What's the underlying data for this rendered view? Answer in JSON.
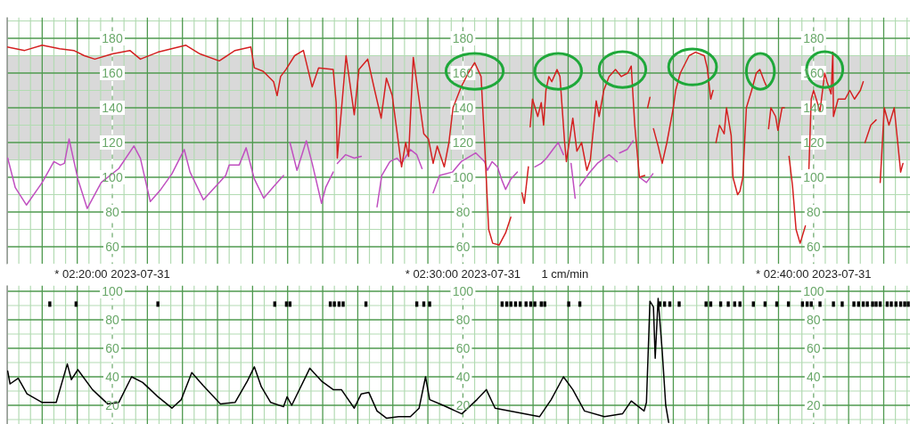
{
  "chart_data": [
    {
      "type": "line",
      "xlim": [
        "2023-07-31T02:17:00",
        "2023-07-31T02:42:45"
      ],
      "ylim": [
        50,
        192
      ],
      "grid": true,
      "annotations": [
        "1 cm/min"
      ],
      "xticks": [
        {
          "value": "2023-07-31T02:17:00",
          "label": null
        },
        {
          "value": "2023-07-31T02:17:20",
          "label": null
        },
        {
          "value": "2023-07-31T02:17:40",
          "label": null
        },
        {
          "value": "2023-07-31T02:18:00",
          "label": null
        },
        {
          "value": "2023-07-31T02:18:20",
          "label": null
        },
        {
          "value": "2023-07-31T02:18:40",
          "label": null
        },
        {
          "value": "2023-07-31T02:19:00",
          "label": null
        },
        {
          "value": "2023-07-31T02:19:20",
          "label": null
        },
        {
          "value": "2023-07-31T02:19:40",
          "label": null
        },
        {
          "value": "2023-07-31T02:20:00",
          "label": "* 02:20:00 2023-07-31"
        },
        {
          "value": "2023-07-31T02:20:20",
          "label": null
        },
        {
          "value": "2023-07-31T02:20:40",
          "label": null
        },
        {
          "value": "2023-07-31T02:21:00",
          "label": null
        },
        {
          "value": "2023-07-31T02:21:20",
          "label": null
        },
        {
          "value": "2023-07-31T02:21:40",
          "label": null
        },
        {
          "value": "2023-07-31T02:22:00",
          "label": null
        },
        {
          "value": "2023-07-31T02:22:20",
          "label": null
        },
        {
          "value": "2023-07-31T02:22:40",
          "label": null
        },
        {
          "value": "2023-07-31T02:23:00",
          "label": null
        },
        {
          "value": "2023-07-31T02:23:20",
          "label": null
        },
        {
          "value": "2023-07-31T02:23:40",
          "label": null
        },
        {
          "value": "2023-07-31T02:24:00",
          "label": null
        },
        {
          "value": "2023-07-31T02:24:20",
          "label": null
        },
        {
          "value": "2023-07-31T02:24:40",
          "label": null
        },
        {
          "value": "2023-07-31T02:25:00",
          "label": null
        },
        {
          "value": "2023-07-31T02:25:20",
          "label": null
        },
        {
          "value": "2023-07-31T02:25:40",
          "label": null
        },
        {
          "value": "2023-07-31T02:26:00",
          "label": null
        },
        {
          "value": "2023-07-31T02:26:20",
          "label": null
        },
        {
          "value": "2023-07-31T02:26:40",
          "label": null
        },
        {
          "value": "2023-07-31T02:27:00",
          "label": null
        },
        {
          "value": "2023-07-31T02:27:20",
          "label": null
        },
        {
          "value": "2023-07-31T02:27:40",
          "label": null
        },
        {
          "value": "2023-07-31T02:28:00",
          "label": null
        },
        {
          "value": "2023-07-31T02:28:20",
          "label": null
        },
        {
          "value": "2023-07-31T02:28:40",
          "label": null
        },
        {
          "value": "2023-07-31T02:29:00",
          "label": null
        },
        {
          "value": "2023-07-31T02:29:20",
          "label": null
        },
        {
          "value": "2023-07-31T02:29:40",
          "label": null
        },
        {
          "value": "2023-07-31T02:30:00",
          "label": "* 02:30:00 2023-07-31"
        },
        {
          "value": "2023-07-31T02:30:20",
          "label": null
        },
        {
          "value": "2023-07-31T02:30:40",
          "label": null
        },
        {
          "value": "2023-07-31T02:31:00",
          "label": null
        },
        {
          "value": "2023-07-31T02:31:20",
          "label": null
        },
        {
          "value": "2023-07-31T02:31:40",
          "label": null
        },
        {
          "value": "2023-07-31T02:32:00",
          "label": null
        },
        {
          "value": "2023-07-31T02:32:20",
          "label": null
        },
        {
          "value": "2023-07-31T02:32:40",
          "label": null
        },
        {
          "value": "2023-07-31T02:33:00",
          "label": null
        },
        {
          "value": "2023-07-31T02:33:20",
          "label": null
        },
        {
          "value": "2023-07-31T02:33:40",
          "label": null
        },
        {
          "value": "2023-07-31T02:34:00",
          "label": null
        },
        {
          "value": "2023-07-31T02:34:20",
          "label": null
        },
        {
          "value": "2023-07-31T02:34:40",
          "label": null
        },
        {
          "value": "2023-07-31T02:35:00",
          "label": null
        },
        {
          "value": "2023-07-31T02:35:20",
          "label": null
        },
        {
          "value": "2023-07-31T02:35:40",
          "label": null
        },
        {
          "value": "2023-07-31T02:36:00",
          "label": null
        },
        {
          "value": "2023-07-31T02:36:20",
          "label": null
        },
        {
          "value": "2023-07-31T02:36:40",
          "label": null
        },
        {
          "value": "2023-07-31T02:37:00",
          "label": null
        },
        {
          "value": "2023-07-31T02:37:20",
          "label": null
        },
        {
          "value": "2023-07-31T02:37:40",
          "label": null
        },
        {
          "value": "2023-07-31T02:38:00",
          "label": null
        },
        {
          "value": "2023-07-31T02:38:20",
          "label": null
        },
        {
          "value": "2023-07-31T02:38:40",
          "label": null
        },
        {
          "value": "2023-07-31T02:39:00",
          "label": null
        },
        {
          "value": "2023-07-31T02:39:20",
          "label": null
        },
        {
          "value": "2023-07-31T02:39:40",
          "label": null
        },
        {
          "value": "2023-07-31T02:40:00",
          "label": "* 02:40:00 2023-07-31"
        },
        {
          "value": "2023-07-31T02:40:20",
          "label": null
        },
        {
          "value": "2023-07-31T02:40:40",
          "label": null
        },
        {
          "value": "2023-07-31T02:41:00",
          "label": null
        },
        {
          "value": "2023-07-31T02:41:20",
          "label": null
        },
        {
          "value": "2023-07-31T02:41:40",
          "label": null
        },
        {
          "value": "2023-07-31T02:42:00",
          "label": null
        },
        {
          "value": "2023-07-31T02:42:20",
          "label": null
        },
        {
          "value": "2023-07-31T02:42:40",
          "label": null
        }
      ],
      "yticks": [
        60,
        {
          "value": 70,
          "label": null
        },
        80,
        {
          "value": 90,
          "label": null
        },
        100,
        {
          "value": 110,
          "label": null
        },
        120,
        {
          "value": 130,
          "label": null
        },
        140,
        {
          "value": 150,
          "label": null
        },
        160,
        {
          "value": 170,
          "label": null
        },
        180,
        {
          "value": 190,
          "label": null
        }
      ],
      "y2lim": [
        50,
        192
      ],
      "y2ticks": [
        60,
        80,
        100,
        120,
        140,
        160,
        180
      ],
      "y3lim": [
        50,
        192
      ],
      "y3ticks": [
        60,
        80,
        100,
        120,
        140,
        160,
        180
      ],
      "bands": [
        {
          "axis": "y",
          "from": 110,
          "to": 170,
          "color": "#d9d9d9"
        }
      ],
      "series": [
        {
          "color": "#d42020",
          "x": [
            "2023-07-31T02:17:00",
            "2023-07-31T02:17:30",
            "2023-07-31T02:18:00",
            "2023-07-31T02:18:30",
            "2023-07-31T02:18:54",
            "2023-07-31T02:19:12",
            "2023-07-31T02:19:30",
            "2023-07-31T02:20:00",
            "2023-07-31T02:20:30",
            "2023-07-31T02:20:48",
            "2023-07-31T02:21:18",
            "2023-07-31T02:22:06",
            "2023-07-31T02:22:30",
            "2023-07-31T02:23:03",
            "2023-07-31T02:23:30",
            "2023-07-31T02:23:57",
            "2023-07-31T02:24:03",
            "2023-07-31T02:24:18",
            "2023-07-31T02:24:36",
            "2023-07-31T02:24:42",
            "2023-07-31T02:24:48",
            "2023-07-31T02:24:57",
            "2023-07-31T02:25:12",
            "2023-07-31T02:25:27",
            "2023-07-31T02:25:42",
            "2023-07-31T02:25:53",
            "2023-07-31T02:26:18",
            "2023-07-31T02:26:23",
            "2023-07-31T02:26:25",
            "2023-07-31T02:26:40",
            "2023-07-31T02:26:54",
            "2023-07-31T02:27:02",
            "2023-07-31T02:27:17",
            "2023-07-31T02:27:29",
            "2023-07-31T02:27:40",
            "2023-07-31T02:27:49",
            "2023-07-31T02:27:59",
            "2023-07-31T02:28:15",
            "2023-07-31T02:28:22",
            "2023-07-31T02:28:27",
            "2023-07-31T02:28:35",
            "2023-07-31T02:28:53",
            "2023-07-31T02:29:01",
            "2023-07-31T02:29:09",
            "2023-07-31T02:29:16",
            "2023-07-31T02:29:28",
            "2023-07-31T02:29:36",
            "2023-07-31T02:29:43",
            "2023-07-31T02:29:57",
            "2023-07-31T02:30:09",
            "2023-07-31T02:30:20",
            "2023-07-31T02:30:31",
            "2023-07-31T02:30:37",
            "2023-07-31T02:30:44",
            "2023-07-31T02:30:51",
            "2023-07-31T02:31:02",
            "2023-07-31T02:31:13",
            "2023-07-31T02:31:22",
            "2023-07-31T02:31:26",
            "2023-07-31T02:31:41",
            "2023-07-31T02:31:45",
            "2023-07-31T02:31:52",
            "2023-07-31T02:31:53",
            "2023-07-31T02:31:55",
            "2023-07-31T02:31:59",
            "2023-07-31T02:32:08",
            "2023-07-31T02:32:14",
            "2023-07-31T02:32:18",
            "2023-07-31T02:32:22",
            "2023-07-31T02:32:27",
            "2023-07-31T02:32:32",
            "2023-07-31T02:32:41",
            "2023-07-31T02:32:46",
            "2023-07-31T02:32:54",
            "2023-07-31T02:32:57",
            "2023-07-31T02:33:08",
            "2023-07-31T02:33:15",
            "2023-07-31T02:33:23",
            "2023-07-31T02:33:32",
            "2023-07-31T02:33:38",
            "2023-07-31T02:33:48",
            "2023-07-31T02:33:53",
            "2023-07-31T02:34:01",
            "2023-07-31T02:34:10",
            "2023-07-31T02:34:21",
            "2023-07-31T02:34:31",
            "2023-07-31T02:34:42",
            "2023-07-31T02:34:48",
            "2023-07-31T02:34:54",
            "2023-07-31T02:35:02",
            "2023-07-31T02:35:11",
            "2023-07-31T02:35:13",
            "2023-07-31T02:35:16",
            "2023-07-31T02:35:20",
            "2023-07-31T02:35:22",
            "2023-07-31T02:35:26",
            "2023-07-31T02:35:34",
            "2023-07-31T02:35:41",
            "2023-07-31T02:35:49",
            "2023-07-31T02:36:00",
            "2023-07-31T02:36:04",
            "2023-07-31T02:36:12",
            "2023-07-31T02:36:27",
            "2023-07-31T02:36:38",
            "2023-07-31T02:36:53",
            "2023-07-31T02:36:58",
            "2023-07-31T02:37:04",
            "2023-07-31T02:37:08",
            "2023-07-31T02:37:10",
            "2023-07-31T02:37:13",
            "2023-07-31T02:37:19",
            "2023-07-31T02:37:27",
            "2023-07-31T02:37:31",
            "2023-07-31T02:37:39",
            "2023-07-31T02:37:42",
            "2023-07-31T02:37:50",
            "2023-07-31T02:37:54",
            "2023-07-31T02:37:59",
            "2023-07-31T02:38:05",
            "2023-07-31T02:38:14",
            "2023-07-31T02:38:22",
            "2023-07-31T02:38:28",
            "2023-07-31T02:38:36",
            "2023-07-31T02:38:40",
            "2023-07-31T02:38:41",
            "2023-07-31T02:38:43",
            "2023-07-31T02:38:47",
            "2023-07-31T02:38:55",
            "2023-07-31T02:38:59",
            "2023-07-31T02:39:06",
            "2023-07-31T02:39:10",
            "2023-07-31T02:39:13",
            "2023-07-31T02:39:18",
            "2023-07-31T02:39:24",
            "2023-07-31T02:39:30",
            "2023-07-31T02:39:37",
            "2023-07-31T02:39:46",
            "2023-07-31T02:39:49",
            "2023-07-31T02:39:52",
            "2023-07-31T02:39:56",
            "2023-07-31T02:40:00",
            "2023-07-31T02:40:11",
            "2023-07-31T02:40:19",
            "2023-07-31T02:40:23",
            "2023-07-31T02:40:30",
            "2023-07-31T02:40:33",
            "2023-07-31T02:40:34",
            "2023-07-31T02:40:42",
            "2023-07-31T02:40:54",
            "2023-07-31T02:41:02",
            "2023-07-31T02:41:10",
            "2023-07-31T02:41:20",
            "2023-07-31T02:41:25",
            "2023-07-31T02:41:26",
            "2023-07-31T02:41:28",
            "2023-07-31T02:41:38",
            "2023-07-31T02:41:47",
            "2023-07-31T02:41:49",
            "2023-07-31T02:41:54",
            "2023-07-31T02:42:01",
            "2023-07-31T02:42:09",
            "2023-07-31T02:42:18",
            "2023-07-31T02:42:24",
            "2023-07-31T02:42:29",
            "2023-07-31T02:42:33"
          ],
          "values": [
            175,
            173,
            176,
            174,
            173,
            170,
            168,
            171,
            173,
            168,
            172,
            176,
            171,
            167,
            173,
            175,
            163,
            161,
            155,
            147,
            158,
            162,
            170,
            173,
            152,
            163,
            162,
            143,
            111,
            170,
            136,
            162,
            168,
            150,
            134,
            157,
            147,
            106,
            120,
            112,
            169,
            125,
            122,
            108,
            118,
            106,
            120,
            140,
            152,
            160,
            166,
            158,
            120,
            70,
            62,
            61,
            68,
            77,
            null,
            91,
            85,
            106,
            null,
            129,
            145,
            135,
            143,
            130,
            150,
            158,
            155,
            162,
            158,
            120,
            109,
            134,
            115,
            120,
            104,
            110,
            144,
            135,
            150,
            158,
            162,
            158,
            160,
            164,
            130,
            100,
            101,
            null,
            140,
            146,
            null,
            128,
            118,
            108,
            120,
            140,
            150,
            160,
            170,
            172,
            170,
            163,
            145,
            150,
            null,
            120,
            130,
            125,
            140,
            124,
            100,
            90,
            92,
            100,
            140,
            150,
            160,
            162,
            155,
            152,
            null,
            128,
            140,
            135,
            127,
            140,
            140,
            null,
            112,
            95,
            70,
            62,
            72,
            null,
            105,
            145,
            150,
            138,
            160,
            155,
            148,
            172,
            135,
            145,
            145,
            150,
            145,
            150,
            155,
            null,
            120,
            130,
            133,
            null,
            97,
            140,
            130,
            140,
            120,
            103,
            108
          ]
        },
        {
          "color": "#c050c0",
          "x": [
            "2023-07-31T02:17:01",
            "2023-07-31T02:17:14",
            "2023-07-31T02:17:33",
            "2023-07-31T02:18:00",
            "2023-07-31T02:18:20",
            "2023-07-31T02:18:31",
            "2023-07-31T02:18:38",
            "2023-07-31T02:18:46",
            "2023-07-31T02:19:01",
            "2023-07-31T02:19:17",
            "2023-07-31T02:19:41",
            "2023-07-31T02:20:11",
            "2023-07-31T02:20:37",
            "2023-07-31T02:20:48",
            "2023-07-31T02:21:05",
            "2023-07-31T02:21:23",
            "2023-07-31T02:21:42",
            "2023-07-31T02:22:03",
            "2023-07-31T02:22:13",
            "2023-07-31T02:22:36",
            "2023-07-31T02:22:52",
            "2023-07-31T02:23:14",
            "2023-07-31T02:23:20",
            "2023-07-31T02:23:37",
            "2023-07-31T02:23:49",
            "2023-07-31T02:24:03",
            "2023-07-31T02:24:19",
            "2023-07-31T02:24:37",
            "2023-07-31T02:24:53",
            "2023-07-31T02:24:58",
            "2023-07-31T02:25:04",
            "2023-07-31T02:25:16",
            "2023-07-31T02:25:32",
            "2023-07-31T02:25:42",
            "2023-07-31T02:25:58",
            "2023-07-31T02:26:05",
            "2023-07-31T02:26:18",
            "2023-07-31T02:26:19",
            "2023-07-31T02:26:25",
            "2023-07-31T02:26:39",
            "2023-07-31T02:26:54",
            "2023-07-31T02:27:06",
            "2023-07-31T02:27:07",
            "2023-07-31T02:27:33",
            "2023-07-31T02:27:41",
            "2023-07-31T02:27:55",
            "2023-07-31T02:28:07",
            "2023-07-31T02:28:15",
            "2023-07-31T02:28:30",
            "2023-07-31T02:28:41",
            "2023-07-31T02:28:50",
            "2023-07-31T02:28:52",
            "2023-07-31T02:29:09",
            "2023-07-31T02:29:20",
            "2023-07-31T02:29:42",
            "2023-07-31T02:29:57",
            "2023-07-31T02:30:22",
            "2023-07-31T02:30:37",
            "2023-07-31T02:30:42",
            "2023-07-31T02:30:50",
            "2023-07-31T02:30:59",
            "2023-07-31T02:31:07",
            "2023-07-31T02:31:13",
            "2023-07-31T02:31:22",
            "2023-07-31T02:31:33",
            "2023-07-31T02:31:34",
            "2023-07-31T02:32:03",
            "2023-07-31T02:32:14",
            "2023-07-31T02:32:23",
            "2023-07-31T02:32:34",
            "2023-07-31T02:32:43",
            "2023-07-31T02:32:52",
            "2023-07-31T02:32:53",
            "2023-07-31T02:33:05",
            "2023-07-31T02:33:12",
            "2023-07-31T02:33:13",
            "2023-07-31T02:33:20",
            "2023-07-31T02:33:35",
            "2023-07-31T02:33:50",
            "2023-07-31T02:34:10",
            "2023-07-31T02:34:24",
            "2023-07-31T02:34:25",
            "2023-07-31T02:34:28",
            "2023-07-31T02:34:41",
            "2023-07-31T02:34:51",
            "2023-07-31T02:34:58",
            "2023-07-31T02:35:02",
            "2023-07-31T02:35:14",
            "2023-07-31T02:35:25"
          ],
          "values": [
            111,
            94,
            84,
            97,
            109,
            107,
            108,
            122,
            99,
            82,
            97,
            105,
            118,
            111,
            86,
            93,
            102,
            116,
            103,
            87,
            93,
            101,
            107,
            107,
            117,
            99,
            88,
            95,
            101,
            null,
            120,
            104,
            121,
            108,
            85,
            94,
            103,
            null,
            108,
            113,
            111,
            112,
            null,
            83,
            101,
            109,
            111,
            108,
            116,
            113,
            105,
            null,
            91,
            101,
            103,
            109,
            114,
            109,
            104,
            109,
            106,
            98,
            93,
            99,
            103,
            null,
            106,
            108,
            111,
            116,
            120,
            113,
            null,
            108,
            88,
            null,
            95,
            102,
            108,
            113,
            109,
            null,
            114,
            116,
            121,
            null,
            100,
            97,
            102
          ]
        }
      ]
    },
    {
      "type": "line",
      "xlim": [
        "2023-07-31T02:17:00",
        "2023-07-31T02:42:45"
      ],
      "ylim": [
        6,
        104
      ],
      "grid": true,
      "tick_labels": "y",
      "xticks": [
        {
          "value": "2023-07-31T02:17:00",
          "label": null
        },
        {
          "value": "2023-07-31T02:17:20",
          "label": null
        },
        {
          "value": "2023-07-31T02:17:40",
          "label": null
        },
        {
          "value": "2023-07-31T02:18:00",
          "label": null
        },
        {
          "value": "2023-07-31T02:18:20",
          "label": null
        },
        {
          "value": "2023-07-31T02:18:40",
          "label": null
        },
        {
          "value": "2023-07-31T02:19:00",
          "label": null
        },
        {
          "value": "2023-07-31T02:19:20",
          "label": null
        },
        {
          "value": "2023-07-31T02:19:40",
          "label": null
        },
        {
          "value": "2023-07-31T02:20:00",
          "label": null
        },
        {
          "value": "2023-07-31T02:20:20",
          "label": null
        },
        {
          "value": "2023-07-31T02:20:40",
          "label": null
        },
        {
          "value": "2023-07-31T02:21:00",
          "label": null
        },
        {
          "value": "2023-07-31T02:21:20",
          "label": null
        },
        {
          "value": "2023-07-31T02:21:40",
          "label": null
        },
        {
          "value": "2023-07-31T02:22:00",
          "label": null
        },
        {
          "value": "2023-07-31T02:22:20",
          "label": null
        },
        {
          "value": "2023-07-31T02:22:40",
          "label": null
        },
        {
          "value": "2023-07-31T02:23:00",
          "label": null
        },
        {
          "value": "2023-07-31T02:23:20",
          "label": null
        },
        {
          "value": "2023-07-31T02:23:40",
          "label": null
        },
        {
          "value": "2023-07-31T02:24:00",
          "label": null
        },
        {
          "value": "2023-07-31T02:24:20",
          "label": null
        },
        {
          "value": "2023-07-31T02:24:40",
          "label": null
        },
        {
          "value": "2023-07-31T02:25:00",
          "label": null
        },
        {
          "value": "2023-07-31T02:25:20",
          "label": null
        },
        {
          "value": "2023-07-31T02:25:40",
          "label": null
        },
        {
          "value": "2023-07-31T02:26:00",
          "label": null
        },
        {
          "value": "2023-07-31T02:26:20",
          "label": null
        },
        {
          "value": "2023-07-31T02:26:40",
          "label": null
        },
        {
          "value": "2023-07-31T02:27:00",
          "label": null
        },
        {
          "value": "2023-07-31T02:27:20",
          "label": null
        },
        {
          "value": "2023-07-31T02:27:40",
          "label": null
        },
        {
          "value": "2023-07-31T02:28:00",
          "label": null
        },
        {
          "value": "2023-07-31T02:28:20",
          "label": null
        },
        {
          "value": "2023-07-31T02:28:40",
          "label": null
        },
        {
          "value": "2023-07-31T02:29:00",
          "label": null
        },
        {
          "value": "2023-07-31T02:29:20",
          "label": null
        },
        {
          "value": "2023-07-31T02:29:40",
          "label": null
        },
        {
          "value": "2023-07-31T02:30:00",
          "label": null
        },
        {
          "value": "2023-07-31T02:30:20",
          "label": null
        },
        {
          "value": "2023-07-31T02:30:40",
          "label": null
        },
        {
          "value": "2023-07-31T02:31:00",
          "label": null
        },
        {
          "value": "2023-07-31T02:31:20",
          "label": null
        },
        {
          "value": "2023-07-31T02:31:40",
          "label": null
        },
        {
          "value": "2023-07-31T02:32:00",
          "label": null
        },
        {
          "value": "2023-07-31T02:32:20",
          "label": null
        },
        {
          "value": "2023-07-31T02:32:40",
          "label": null
        },
        {
          "value": "2023-07-31T02:33:00",
          "label": null
        },
        {
          "value": "2023-07-31T02:33:20",
          "label": null
        },
        {
          "value": "2023-07-31T02:33:40",
          "label": null
        },
        {
          "value": "2023-07-31T02:34:00",
          "label": null
        },
        {
          "value": "2023-07-31T02:34:20",
          "label": null
        },
        {
          "value": "2023-07-31T02:34:40",
          "label": null
        },
        {
          "value": "2023-07-31T02:35:00",
          "label": null
        },
        {
          "value": "2023-07-31T02:35:20",
          "label": null
        },
        {
          "value": "2023-07-31T02:35:40",
          "label": null
        },
        {
          "value": "2023-07-31T02:36:00",
          "label": null
        },
        {
          "value": "2023-07-31T02:36:20",
          "label": null
        },
        {
          "value": "2023-07-31T02:36:40",
          "label": null
        },
        {
          "value": "2023-07-31T02:37:00",
          "label": null
        },
        {
          "value": "2023-07-31T02:37:20",
          "label": null
        },
        {
          "value": "2023-07-31T02:37:40",
          "label": null
        },
        {
          "value": "2023-07-31T02:38:00",
          "label": null
        },
        {
          "value": "2023-07-31T02:38:20",
          "label": null
        },
        {
          "value": "2023-07-31T02:38:40",
          "label": null
        },
        {
          "value": "2023-07-31T02:39:00",
          "label": null
        },
        {
          "value": "2023-07-31T02:39:20",
          "label": null
        },
        {
          "value": "2023-07-31T02:39:40",
          "label": null
        },
        {
          "value": "2023-07-31T02:40:00",
          "label": null
        },
        {
          "value": "2023-07-31T02:40:20",
          "label": null
        },
        {
          "value": "2023-07-31T02:40:40",
          "label": null
        },
        {
          "value": "2023-07-31T02:41:00",
          "label": null
        },
        {
          "value": "2023-07-31T02:41:20",
          "label": null
        },
        {
          "value": "2023-07-31T02:41:40",
          "label": null
        },
        {
          "value": "2023-07-31T02:42:00",
          "label": null
        },
        {
          "value": "2023-07-31T02:42:20",
          "label": null
        },
        {
          "value": "2023-07-31T02:42:40",
          "label": null
        }
      ],
      "yticks": [
        {
          "value": 10,
          "label": null
        },
        20,
        {
          "value": 30,
          "label": null
        },
        40,
        {
          "value": 50,
          "label": null
        },
        60,
        {
          "value": 70,
          "label": null
        },
        80,
        {
          "value": 90,
          "label": null
        },
        100
      ],
      "y2lim": [
        6,
        104
      ],
      "y2ticks": [
        20,
        40,
        60,
        80,
        100
      ],
      "y3lim": [
        6,
        104
      ],
      "y3ticks": [
        20,
        40,
        60,
        80,
        100
      ],
      "series": [
        {
          "color": "#000000",
          "x": [
            "2023-07-31T02:17:01",
            "2023-07-31T02:17:05",
            "2023-07-31T02:17:19",
            "2023-07-31T02:17:34",
            "2023-07-31T02:18:00",
            "2023-07-31T02:18:24",
            "2023-07-31T02:18:43",
            "2023-07-31T02:18:50",
            "2023-07-31T02:19:01",
            "2023-07-31T02:19:26",
            "2023-07-31T02:19:52",
            "2023-07-31T02:20:11",
            "2023-07-31T02:20:33",
            "2023-07-31T02:20:52",
            "2023-07-31T02:21:18",
            "2023-07-31T02:21:42",
            "2023-07-31T02:21:58",
            "2023-07-31T02:22:16",
            "2023-07-31T02:22:35",
            "2023-07-31T02:23:05",
            "2023-07-31T02:23:30",
            "2023-07-31T02:23:51",
            "2023-07-31T02:24:03",
            "2023-07-31T02:24:15",
            "2023-07-31T02:24:31",
            "2023-07-31T02:24:53",
            "2023-07-31T02:24:59",
            "2023-07-31T02:25:07",
            "2023-07-31T02:25:38",
            "2023-07-31T02:25:58",
            "2023-07-31T02:26:18",
            "2023-07-31T02:26:32",
            "2023-07-31T02:26:54",
            "2023-07-31T02:27:06",
            "2023-07-31T02:27:19",
            "2023-07-31T02:27:33",
            "2023-07-31T02:27:49",
            "2023-07-31T02:28:10",
            "2023-07-31T02:28:30",
            "2023-07-31T02:28:45",
            "2023-07-31T02:28:56",
            "2023-07-31T02:29:03",
            "2023-07-31T02:29:26",
            "2023-07-31T02:29:58",
            "2023-07-31T02:30:24",
            "2023-07-31T02:30:40",
            "2023-07-31T02:30:55",
            "2023-07-31T02:31:21",
            "2023-07-31T02:32:11",
            "2023-07-31T02:32:31",
            "2023-07-31T02:32:52",
            "2023-07-31T02:33:08",
            "2023-07-31T02:33:28",
            "2023-07-31T02:34:02",
            "2023-07-31T02:34:33",
            "2023-07-31T02:34:48",
            "2023-07-31T02:35:10",
            "2023-07-31T02:35:14",
            "2023-07-31T02:35:20",
            "2023-07-31T02:35:26",
            "2023-07-31T02:35:29",
            "2023-07-31T02:35:34",
            "2023-07-31T02:35:41",
            "2023-07-31T02:35:47",
            "2023-07-31T02:35:52"
          ],
          "values": [
            44,
            35,
            39,
            28,
            22,
            22,
            49,
            38,
            45,
            31,
            21,
            22,
            40,
            36,
            26,
            18,
            24,
            43,
            34,
            21,
            22,
            37,
            47,
            33,
            22,
            19,
            26,
            20,
            46,
            37,
            31,
            31,
            18,
            28,
            29,
            16,
            11,
            12,
            12,
            18,
            40,
            24,
            20,
            14,
            24,
            31,
            18,
            16,
            12,
            24,
            40,
            31,
            16,
            12,
            14,
            23,
            16,
            22,
            93,
            89,
            53,
            95,
            58,
            20,
            8
          ]
        },
        {
          "type": "scatter",
          "marker": "square",
          "color": "#000000",
          "x": [
            "2023-07-31T02:18:13",
            "2023-07-31T02:18:58",
            "2023-07-31T02:21:18",
            "2023-07-31T02:24:38",
            "2023-07-31T02:24:58",
            "2023-07-31T02:25:04",
            "2023-07-31T02:26:13",
            "2023-07-31T02:26:20",
            "2023-07-31T02:26:28",
            "2023-07-31T02:26:35",
            "2023-07-31T02:27:14",
            "2023-07-31T02:28:41",
            "2023-07-31T02:28:53",
            "2023-07-31T02:29:03",
            "2023-07-31T02:31:07",
            "2023-07-31T02:31:15",
            "2023-07-31T02:31:22",
            "2023-07-31T02:31:30",
            "2023-07-31T02:31:38",
            "2023-07-31T02:31:48",
            "2023-07-31T02:31:56",
            "2023-07-31T02:32:03",
            "2023-07-31T02:32:14",
            "2023-07-31T02:32:20",
            "2023-07-31T02:33:01",
            "2023-07-31T02:33:20",
            "2023-07-31T02:35:37",
            "2023-07-31T02:35:45",
            "2023-07-31T02:35:54",
            "2023-07-31T02:36:10",
            "2023-07-31T02:36:56",
            "2023-07-31T02:37:04",
            "2023-07-31T02:37:21",
            "2023-07-31T02:37:34",
            "2023-07-31T02:37:45",
            "2023-07-31T02:37:54",
            "2023-07-31T02:38:17",
            "2023-07-31T02:38:37",
            "2023-07-31T02:38:57",
            "2023-07-31T02:39:17",
            "2023-07-31T02:39:41",
            "2023-07-31T02:39:49",
            "2023-07-31T02:39:56",
            "2023-07-31T02:40:11",
            "2023-07-31T02:40:34",
            "2023-07-31T02:40:49",
            "2023-07-31T02:41:09",
            "2023-07-31T02:41:17",
            "2023-07-31T02:41:25",
            "2023-07-31T02:41:32",
            "2023-07-31T02:41:41",
            "2023-07-31T02:41:47",
            "2023-07-31T02:41:54",
            "2023-07-31T02:42:06",
            "2023-07-31T02:42:13",
            "2023-07-31T02:42:21",
            "2023-07-31T02:42:29",
            "2023-07-31T02:42:36",
            "2023-07-31T02:42:42"
          ],
          "values": [
            91,
            91,
            91,
            91,
            91,
            91,
            91,
            91,
            91,
            91,
            91,
            91,
            91,
            91,
            91,
            91,
            91,
            91,
            91,
            91,
            91,
            91,
            91,
            91,
            91,
            91,
            91,
            91,
            91,
            91,
            91,
            91,
            91,
            91,
            91,
            91,
            91,
            91,
            91,
            91,
            91,
            91,
            91,
            91,
            91,
            91,
            91,
            91,
            91,
            91,
            91,
            91,
            91,
            91,
            91,
            91,
            91,
            91,
            91
          ]
        }
      ]
    }
  ]
}
